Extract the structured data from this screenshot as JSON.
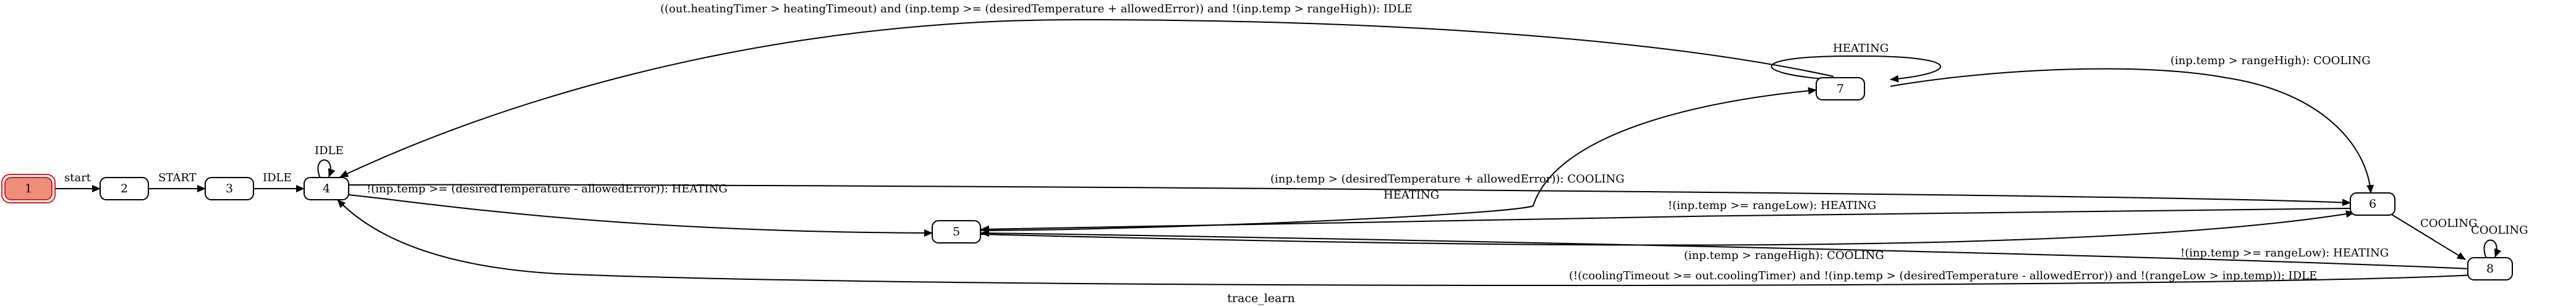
{
  "diagram": {
    "title": "trace_learn",
    "nodes": [
      {
        "id": "1",
        "label": "1",
        "initial": true
      },
      {
        "id": "2",
        "label": "2"
      },
      {
        "id": "3",
        "label": "3"
      },
      {
        "id": "4",
        "label": "4"
      },
      {
        "id": "5",
        "label": "5"
      },
      {
        "id": "6",
        "label": "6"
      },
      {
        "id": "7",
        "label": "7"
      },
      {
        "id": "8",
        "label": "8"
      }
    ],
    "edges": [
      {
        "from": "1",
        "to": "2",
        "label": "start"
      },
      {
        "from": "2",
        "to": "3",
        "label": "START"
      },
      {
        "from": "3",
        "to": "4",
        "label": "IDLE"
      },
      {
        "from": "4",
        "to": "4",
        "label": "IDLE"
      },
      {
        "from": "4",
        "to": "5",
        "label": "!(inp.temp >= (desiredTemperature - allowedError)): HEATING"
      },
      {
        "from": "4",
        "to": "6",
        "label": "(inp.temp > (desiredTemperature + allowedError)): COOLING"
      },
      {
        "from": "5",
        "to": "7",
        "label": "HEATING"
      },
      {
        "from": "6",
        "to": "5",
        "label": "!(inp.temp >= rangeLow): HEATING"
      },
      {
        "from": "5",
        "to": "6",
        "label": "(inp.temp > rangeHigh): COOLING"
      },
      {
        "from": "7",
        "to": "7",
        "label": "HEATING"
      },
      {
        "from": "7",
        "to": "4",
        "label": "((out.heatingTimer > heatingTimeout) and (inp.temp >= (desiredTemperature + allowedError)) and !(inp.temp > rangeHigh)): IDLE"
      },
      {
        "from": "7",
        "to": "6",
        "label": "(inp.temp > rangeHigh): COOLING"
      },
      {
        "from": "6",
        "to": "8",
        "label": "COOLING"
      },
      {
        "from": "8",
        "to": "8",
        "label": "COOLING"
      },
      {
        "from": "8",
        "to": "5",
        "label": "!(inp.temp >= rangeLow): HEATING"
      },
      {
        "from": "8",
        "to": "4",
        "label": "(!(coolingTimeout >= out.coolingTimer) and !(inp.temp > (desiredTemperature - allowedError)) and !(rangeLow > inp.temp)): IDLE"
      }
    ]
  }
}
